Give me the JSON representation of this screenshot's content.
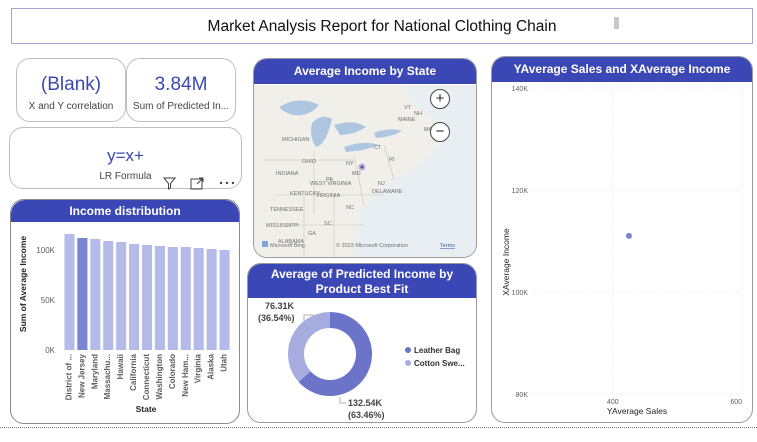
{
  "report_title": "Market Analysis Report for National Clothing Chain",
  "kpis": {
    "correlation": {
      "value": "(Blank)",
      "label": "X and Y correlation"
    },
    "predicted_income": {
      "value": "3.84M",
      "label": "Sum of Predicted In..."
    },
    "formula": {
      "value": "y=x+",
      "label": "LR Formula"
    }
  },
  "toolbar_icons": [
    "filter-icon",
    "focus-mode-icon",
    "more-options-icon"
  ],
  "map": {
    "title": "Average Income by State",
    "zoom_in": "+",
    "zoom_out": "−",
    "labels": [
      "MICHIGAN",
      "MAINE",
      "OHIO",
      "INDIANA",
      "NY",
      "PA",
      "WEST VIRGINIA",
      "NJ",
      "DELAWARE",
      "KENTUCKY",
      "VIRGINIA",
      "TENNESSEE",
      "NC",
      "SC",
      "GA",
      "ALABAMA",
      "MISSISSIPPI",
      "VT",
      "NH",
      "MA",
      "CT",
      "RI",
      "MD"
    ],
    "copyright": "© 2023 Microsoft Corporation",
    "terms": "Terms",
    "brand": "Microsoft Bing"
  },
  "colors": {
    "accent": "#3b47b4",
    "bar": "#b5bbe9",
    "bar_selected": "#7b84d3",
    "donut_dark": "#6b74c9",
    "donut_light": "#a6acdf",
    "kpi": "#3a49b2"
  },
  "charts": {
    "income_distribution": {
      "title": "Income distribution",
      "chart_data": {
        "type": "bar",
        "categories": [
          "District of ...",
          "New Jersey",
          "Maryland",
          "Massachu...",
          "Hawaii",
          "California",
          "Connecticut",
          "Washington",
          "Colorado",
          "New Ham...",
          "Virginia",
          "Alaska",
          "Utah"
        ],
        "values": [
          116,
          112,
          111,
          109,
          108,
          106,
          105,
          104,
          103,
          103,
          102,
          101,
          100
        ],
        "selected_index": 1,
        "xlabel": "State",
        "ylabel": "Sum of Average Income",
        "y_ticks": [
          "0K",
          "50K",
          "100K"
        ],
        "ylim": [
          0,
          120
        ],
        "grid": false
      }
    },
    "predicted_income": {
      "title": "Average of Predicted Income by Product Best Fit",
      "chart_data": {
        "type": "pie",
        "labels": [
          "Leather Bag",
          "Cotton Swe..."
        ],
        "values": [
          132.54,
          76.31
        ],
        "value_labels": [
          "132.54K",
          "76.31K"
        ],
        "percent_labels": [
          "(63.46%)",
          "(36.54%)"
        ],
        "legend_position": "right"
      }
    },
    "scatter": {
      "title": "YAverage Sales and XAverage Income",
      "chart_data": {
        "type": "scatter",
        "points": [
          {
            "x": 425,
            "y": 111
          }
        ],
        "xlabel": "YAverage Sales",
        "ylabel": "XAverage Income",
        "x_ticks": [
          "400",
          "600"
        ],
        "xlim": [
          275,
          600
        ],
        "y_ticks": [
          "80K",
          "100K",
          "120K",
          "140K"
        ],
        "ylim": [
          80,
          140
        ],
        "grid": true
      }
    }
  }
}
